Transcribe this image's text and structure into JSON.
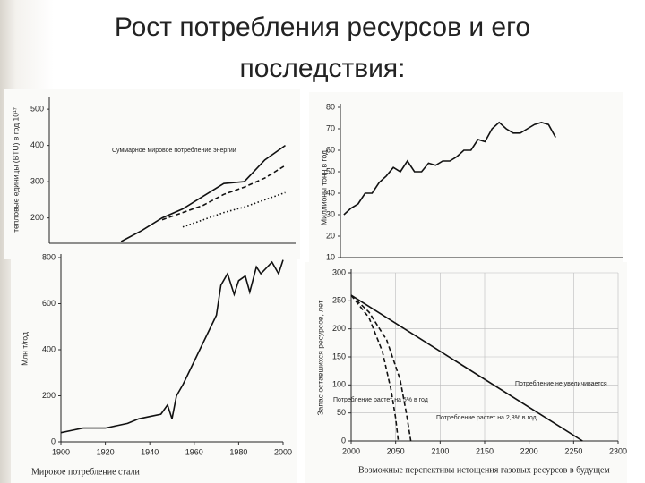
{
  "title": "Рост потребления ресурсов и его последствия:",
  "chart_data": [
    {
      "type": "line",
      "y_label": "тепловые единицы (BTU) в год 10¹⁷",
      "annotation": "Суммарное мировое потребление энергии",
      "categories": [
        null,
        null,
        null,
        null,
        null,
        null,
        null,
        null,
        null,
        null,
        null,
        null
      ],
      "series": [
        {
          "color": "#111111",
          "dash": "solid",
          "values": [
            null,
            null,
            null,
            135,
            165,
            200,
            225,
            260,
            295,
            300,
            360,
            400
          ]
        },
        {
          "color": "#111111",
          "dash": "dashed",
          "values": [
            null,
            null,
            null,
            null,
            null,
            195,
            215,
            235,
            265,
            285,
            310,
            345
          ]
        },
        {
          "color": "#111111",
          "dash": "dotted",
          "values": [
            null,
            null,
            null,
            null,
            null,
            null,
            175,
            195,
            215,
            230,
            250,
            270
          ]
        }
      ],
      "ylim": [
        130,
        525
      ],
      "yticks": [
        200,
        300,
        400,
        500
      ],
      "grid": false
    },
    {
      "type": "line",
      "y_label": "Миллионы тонн в год",
      "categories": [
        null,
        null,
        null,
        null,
        null,
        null,
        null,
        null,
        null,
        null,
        null,
        null,
        null,
        null,
        null,
        null,
        null,
        null,
        null,
        null,
        null,
        null,
        null,
        null,
        null,
        null,
        null,
        null,
        null,
        null,
        null,
        null,
        null,
        null,
        null,
        null,
        null,
        null,
        null,
        null
      ],
      "series": [
        {
          "color": "#111111",
          "dash": "solid",
          "values": [
            30,
            33,
            35,
            40,
            40,
            45,
            48,
            52,
            50,
            55,
            50,
            50,
            54,
            53,
            55,
            55,
            57,
            60,
            60,
            65,
            64,
            70,
            73,
            70,
            68,
            68,
            70,
            72,
            73,
            72,
            66,
            null,
            null,
            null,
            null,
            null,
            null,
            null,
            null,
            null
          ]
        }
      ],
      "ylim": [
        10,
        80
      ],
      "yticks": [
        10,
        20,
        30,
        40,
        50,
        60,
        70,
        80
      ],
      "grid": false
    },
    {
      "type": "line",
      "y_label": "Млн т/год",
      "caption": "Мировое потребление стали",
      "x": [
        1900,
        1905,
        1910,
        1915,
        1920,
        1925,
        1930,
        1935,
        1940,
        1945,
        1948,
        1950,
        1952,
        1955,
        1960,
        1965,
        1970,
        1972,
        1975,
        1978,
        1980,
        1983,
        1985,
        1988,
        1990,
        1995,
        1998,
        2000
      ],
      "values": [
        40,
        50,
        60,
        60,
        60,
        70,
        80,
        100,
        110,
        120,
        160,
        100,
        200,
        250,
        350,
        450,
        550,
        680,
        730,
        640,
        700,
        720,
        650,
        760,
        730,
        780,
        730,
        790
      ],
      "color": "#111111",
      "xlim": [
        1900,
        2000
      ],
      "xticks": [
        1900,
        1920,
        1940,
        1960,
        1980,
        2000
      ],
      "ylim": [
        0,
        800
      ],
      "yticks": [
        0,
        200,
        400,
        600,
        800
      ],
      "grid": false
    },
    {
      "type": "line",
      "y_label": "Запас оставшихся ресурсов, лет",
      "caption": "Возможные перспективы истощения газовых ресурсов в будущем",
      "series": [
        {
          "name": "Потребление не увеличивается",
          "color": "#111111",
          "dash": "solid",
          "x": [
            2000,
            2260
          ],
          "values": [
            260,
            0
          ]
        },
        {
          "name": "Потребление растет на 2,8% в год",
          "color": "#111111",
          "dash": "dashed",
          "x": [
            2000,
            2020,
            2040,
            2055,
            2062,
            2067
          ],
          "values": [
            260,
            230,
            180,
            110,
            50,
            0
          ]
        },
        {
          "name": "Потребление растет на 5% в год",
          "color": "#111111",
          "dash": "dashed",
          "x": [
            2000,
            2020,
            2035,
            2045,
            2050,
            2053
          ],
          "values": [
            260,
            220,
            160,
            90,
            40,
            0
          ]
        }
      ],
      "xlim": [
        2000,
        2300
      ],
      "xticks": [
        2000,
        2050,
        2100,
        2150,
        2200,
        2250,
        2300
      ],
      "ylim": [
        0,
        300
      ],
      "yticks": [
        0,
        50,
        100,
        150,
        200,
        250,
        300
      ],
      "grid": true
    }
  ]
}
